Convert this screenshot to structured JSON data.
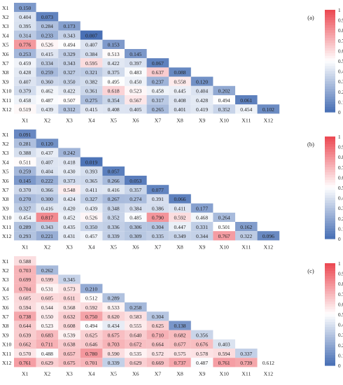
{
  "chart_data": [
    {
      "type": "heatmap",
      "panel_label": "(a)",
      "labels": [
        "X1",
        "X2",
        "X3",
        "X4",
        "X5",
        "X6",
        "X7",
        "X8",
        "X9",
        "X10",
        "X11",
        "X12"
      ],
      "shape": "lower-triangular",
      "vmin": 0,
      "vmax": 1,
      "colorbar_ticks": [
        "0",
        "0.1",
        "0.2",
        "0.3",
        "0.4",
        "0.5",
        "0.6",
        "0.7",
        "0.8",
        "0.9",
        "1"
      ],
      "values": [
        [
          0.15
        ],
        [
          0.404,
          0.073
        ],
        [
          0.395,
          0.284,
          0.173
        ],
        [
          0.314,
          0.233,
          0.343,
          0.007
        ],
        [
          0.776,
          0.526,
          0.494,
          0.407,
          0.153
        ],
        [
          0.253,
          0.415,
          0.329,
          0.384,
          0.513,
          0.145
        ],
        [
          0.459,
          0.334,
          0.343,
          0.595,
          0.422,
          0.397,
          0.067
        ],
        [
          0.428,
          0.259,
          0.327,
          0.321,
          0.375,
          0.483,
          0.637,
          0.088
        ],
        [
          0.407,
          0.36,
          0.35,
          0.382,
          0.495,
          0.45,
          0.237,
          0.558,
          0.12
        ],
        [
          0.379,
          0.462,
          0.422,
          0.361,
          0.618,
          0.523,
          0.458,
          0.445,
          0.404,
          0.202
        ],
        [
          0.458,
          0.487,
          0.507,
          0.275,
          0.354,
          0.567,
          0.317,
          0.408,
          0.428,
          0.494,
          0.061
        ],
        [
          0.519,
          0.439,
          0.312,
          0.415,
          0.408,
          0.405,
          0.265,
          0.401,
          0.419,
          0.352,
          0.454,
          0.102
        ]
      ]
    },
    {
      "type": "heatmap",
      "panel_label": "(b)",
      "labels": [
        "X1",
        "X2",
        "X3",
        "X4",
        "X5",
        "X6",
        "X7",
        "X8",
        "X9",
        "X10",
        "X11",
        "X12"
      ],
      "shape": "lower-triangular",
      "vmin": 0,
      "vmax": 1,
      "colorbar_ticks": [
        "0",
        "0.1",
        "0.2",
        "0.3",
        "0.4",
        "0.5",
        "0.6",
        "0.7",
        "0.8",
        "0.9",
        "1"
      ],
      "values": [
        [
          0.091
        ],
        [
          0.281,
          0.12
        ],
        [
          0.388,
          0.437,
          0.242
        ],
        [
          0.511,
          0.407,
          0.418,
          0.019
        ],
        [
          0.259,
          0.404,
          0.43,
          0.393,
          0.057
        ],
        [
          0.145,
          0.222,
          0.373,
          0.365,
          0.266,
          0.053
        ],
        [
          0.37,
          0.366,
          0.548,
          0.411,
          0.416,
          0.357,
          0.077
        ],
        [
          0.27,
          0.3,
          0.424,
          0.327,
          0.267,
          0.274,
          0.391,
          0.066
        ],
        [
          0.327,
          0.416,
          0.42,
          0.439,
          0.348,
          0.384,
          0.386,
          0.411,
          0.177
        ],
        [
          0.454,
          0.817,
          0.452,
          0.526,
          0.352,
          0.485,
          0.79,
          0.592,
          0.468,
          0.264
        ],
        [
          0.289,
          0.343,
          0.435,
          0.35,
          0.336,
          0.306,
          0.304,
          0.447,
          0.331,
          0.501,
          0.162
        ],
        [
          0.293,
          0.221,
          0.431,
          0.457,
          0.339,
          0.309,
          0.335,
          0.349,
          0.344,
          0.767,
          0.322,
          0.096
        ]
      ]
    },
    {
      "type": "heatmap",
      "panel_label": "(c)",
      "labels": [
        "X1",
        "X2",
        "X3",
        "X4",
        "X5",
        "X6",
        "X7",
        "X8",
        "X9",
        "X10",
        "X11",
        "X12"
      ],
      "shape": "lower-triangular",
      "vmin": 0,
      "vmax": 1,
      "colorbar_ticks": [
        "0",
        "0.1",
        "0.2",
        "0.3",
        "0.4",
        "0.5",
        "0.6",
        "0.7",
        "0.8",
        "0.9",
        "1"
      ],
      "values": [
        [
          0.588
        ],
        [
          0.703,
          0.262
        ],
        [
          0.699,
          0.599,
          0.345
        ],
        [
          0.704,
          0.531,
          0.573,
          0.21
        ],
        [
          0.605,
          0.605,
          0.611,
          0.512,
          0.289
        ],
        [
          0.594,
          0.544,
          0.568,
          0.592,
          0.533,
          0.258
        ],
        [
          0.738,
          0.55,
          0.632,
          0.75,
          0.62,
          0.583,
          0.304
        ],
        [
          0.644,
          0.523,
          0.608,
          0.494,
          0.434,
          0.555,
          0.625,
          0.138
        ],
        [
          0.639,
          0.683,
          0.539,
          0.625,
          0.675,
          0.64,
          0.71,
          0.682,
          0.356
        ],
        [
          0.662,
          0.711,
          0.638,
          0.646,
          0.703,
          0.672,
          0.664,
          0.677,
          0.676,
          0.403
        ],
        [
          0.57,
          0.488,
          0.657,
          0.78,
          0.59,
          0.535,
          0.572,
          0.575,
          0.578,
          0.594,
          0.337
        ],
        [
          0.761,
          0.629,
          0.675,
          0.701,
          0.339,
          0.629,
          0.669,
          0.737,
          0.487,
          0.761,
          0.739,
          0.612
        ]
      ]
    }
  ]
}
